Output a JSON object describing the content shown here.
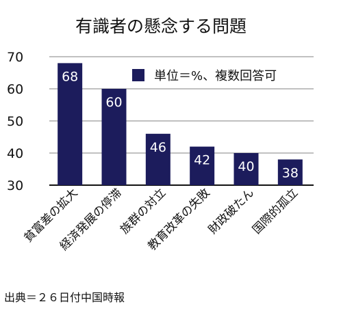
{
  "chart_data": {
    "type": "bar",
    "title": "有識者の懸念する問題",
    "legend": "単位＝%、複数回答可",
    "legend_placement": "top-right",
    "bar_color": "#1c1c5c",
    "grid_color": "#9a9a9a",
    "grid": true,
    "xlabel": "",
    "ylabel": "",
    "ylim": [
      30,
      70
    ],
    "yticks": [
      30,
      40,
      50,
      60,
      70
    ],
    "categories": [
      "貧富差の拡大",
      "経済発展の停滞",
      "族群の対立",
      "教育改革の失敗",
      "財政破たん",
      "国際的孤立"
    ],
    "values": [
      68,
      60,
      46,
      42,
      40,
      38
    ]
  },
  "source": "出典＝２６日付中国時報"
}
